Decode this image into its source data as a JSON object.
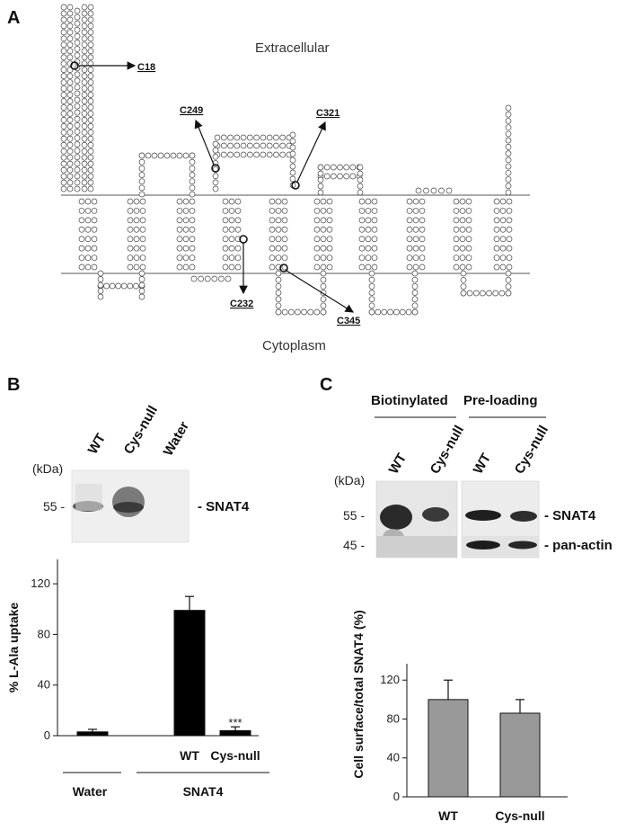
{
  "panel_a": {
    "letter": "A",
    "extracellular": "Extracellular",
    "cytoplasm": "Cytoplasm",
    "cysteines": [
      "C18",
      "C249",
      "C321",
      "C232",
      "C345"
    ]
  },
  "panel_b": {
    "letter": "B",
    "blot": {
      "lanes": [
        "WT",
        "Cys-null",
        "Water"
      ],
      "kda_label": "(kDa)",
      "marker": "55 -",
      "protein": "- SNAT4"
    },
    "groups": [
      "Water",
      "SNAT4"
    ],
    "significance": "***"
  },
  "panel_c": {
    "letter": "C",
    "headers": [
      "Biotinylated",
      "Pre-loading"
    ],
    "blot": {
      "lanes": [
        "WT",
        "Cys-null",
        "WT",
        "Cys-null"
      ],
      "kda_label": "(kDa)",
      "markers": [
        "55 -",
        "45 -"
      ],
      "proteins": [
        "- SNAT4",
        "- pan-actin"
      ]
    }
  },
  "chart_data": [
    {
      "type": "bar",
      "panel": "B",
      "categories": [
        "Water",
        "WT",
        "Cys-null"
      ],
      "values": [
        3,
        99,
        4
      ],
      "errors": [
        2,
        11,
        3
      ],
      "ylabel": "% L-Ala uptake",
      "yticks": [
        0,
        40,
        80,
        120
      ],
      "ylim": [
        0,
        135
      ],
      "bar_color": "#000000"
    },
    {
      "type": "bar",
      "panel": "C",
      "categories": [
        "WT",
        "Cys-null"
      ],
      "values": [
        100,
        86
      ],
      "errors": [
        20,
        14
      ],
      "ylabel": "Cell surface/total SNAT4 (%)",
      "yticks": [
        0,
        40,
        80,
        120
      ],
      "ylim": [
        0,
        135
      ],
      "bar_color": "#999999"
    }
  ]
}
